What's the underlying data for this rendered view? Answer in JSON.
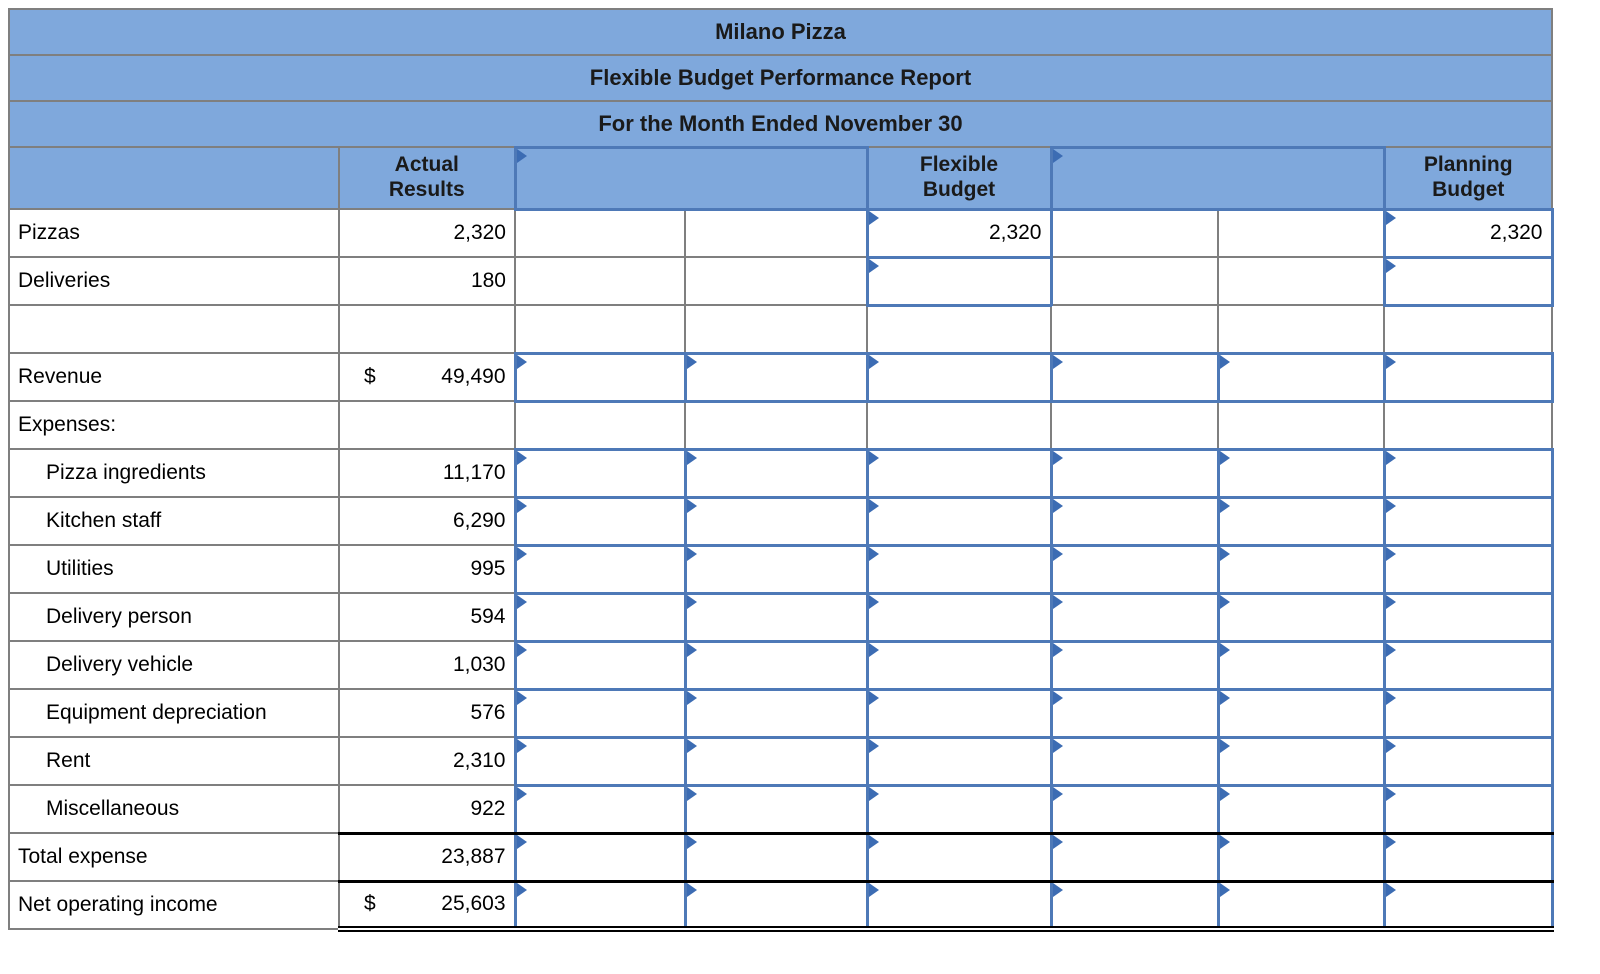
{
  "report": {
    "title": "Milano Pizza",
    "subtitle": "Flexible Budget Performance Report",
    "period": "For the Month Ended November 30"
  },
  "column_headers": {
    "actual": "Actual\nResults",
    "flexible": "Flexible\nBudget",
    "planning": "Planning\nBudget"
  },
  "colors": {
    "header_bg": "#7FA8DC",
    "input_border": "#4E79B7",
    "flag": "#3C6CB3",
    "grid": "#7f7f7f"
  },
  "body_rows": [
    {
      "name": "pizzas",
      "label": "Pizzas",
      "indent": false,
      "rule": "none",
      "actual": {
        "value": "2,320"
      },
      "cells": [
        null,
        null,
        {
          "value": "2,320"
        },
        null,
        null,
        {
          "value": "2,320"
        }
      ]
    },
    {
      "name": "deliveries",
      "label": "Deliveries",
      "indent": false,
      "rule": "none",
      "actual": {
        "value": "180"
      },
      "cells": [
        null,
        null,
        {
          "value": ""
        },
        null,
        null,
        {
          "value": ""
        }
      ]
    },
    {
      "name": "spacer",
      "label": "",
      "indent": false,
      "rule": "none",
      "actual": null,
      "cells": [
        null,
        null,
        null,
        null,
        null,
        null
      ]
    },
    {
      "name": "revenue",
      "label": "Revenue",
      "indent": false,
      "rule": "none",
      "actual": {
        "prefix": "$",
        "value": "49,490"
      },
      "cells": [
        {
          "value": ""
        },
        {
          "value": ""
        },
        {
          "value": ""
        },
        {
          "value": ""
        },
        {
          "value": ""
        },
        {
          "value": ""
        }
      ]
    },
    {
      "name": "expenses-heading",
      "label": "Expenses:",
      "indent": false,
      "rule": "none",
      "actual": null,
      "cells": [
        null,
        null,
        null,
        null,
        null,
        null
      ]
    },
    {
      "name": "pizza-ingredients",
      "label": "Pizza ingredients",
      "indent": true,
      "rule": "none",
      "actual": {
        "value": "11,170"
      },
      "cells": [
        {
          "value": ""
        },
        {
          "value": ""
        },
        {
          "value": ""
        },
        {
          "value": ""
        },
        {
          "value": ""
        },
        {
          "value": ""
        }
      ]
    },
    {
      "name": "kitchen-staff",
      "label": "Kitchen staff",
      "indent": true,
      "rule": "none",
      "actual": {
        "value": "6,290"
      },
      "cells": [
        {
          "value": ""
        },
        {
          "value": ""
        },
        {
          "value": ""
        },
        {
          "value": ""
        },
        {
          "value": ""
        },
        {
          "value": ""
        }
      ]
    },
    {
      "name": "utilities",
      "label": "Utilities",
      "indent": true,
      "rule": "none",
      "actual": {
        "value": "995"
      },
      "cells": [
        {
          "value": ""
        },
        {
          "value": ""
        },
        {
          "value": ""
        },
        {
          "value": ""
        },
        {
          "value": ""
        },
        {
          "value": ""
        }
      ]
    },
    {
      "name": "delivery-person",
      "label": "Delivery person",
      "indent": true,
      "rule": "none",
      "actual": {
        "value": "594"
      },
      "cells": [
        {
          "value": ""
        },
        {
          "value": ""
        },
        {
          "value": ""
        },
        {
          "value": ""
        },
        {
          "value": ""
        },
        {
          "value": ""
        }
      ]
    },
    {
      "name": "delivery-vehicle",
      "label": "Delivery vehicle",
      "indent": true,
      "rule": "none",
      "actual": {
        "value": "1,030"
      },
      "cells": [
        {
          "value": ""
        },
        {
          "value": ""
        },
        {
          "value": ""
        },
        {
          "value": ""
        },
        {
          "value": ""
        },
        {
          "value": ""
        }
      ]
    },
    {
      "name": "equipment-depreciation",
      "label": "Equipment depreciation",
      "indent": true,
      "rule": "none",
      "actual": {
        "value": "576"
      },
      "cells": [
        {
          "value": ""
        },
        {
          "value": ""
        },
        {
          "value": ""
        },
        {
          "value": ""
        },
        {
          "value": ""
        },
        {
          "value": ""
        }
      ]
    },
    {
      "name": "rent",
      "label": "Rent",
      "indent": true,
      "rule": "none",
      "actual": {
        "value": "2,310"
      },
      "cells": [
        {
          "value": ""
        },
        {
          "value": ""
        },
        {
          "value": ""
        },
        {
          "value": ""
        },
        {
          "value": ""
        },
        {
          "value": ""
        }
      ]
    },
    {
      "name": "miscellaneous",
      "label": "Miscellaneous",
      "indent": true,
      "rule": "single",
      "actual": {
        "value": "922"
      },
      "cells": [
        {
          "value": ""
        },
        {
          "value": ""
        },
        {
          "value": ""
        },
        {
          "value": ""
        },
        {
          "value": ""
        },
        {
          "value": ""
        }
      ]
    },
    {
      "name": "total-expense",
      "label": "Total expense",
      "indent": false,
      "rule": "single",
      "actual": {
        "value": "23,887"
      },
      "cells": [
        {
          "value": ""
        },
        {
          "value": ""
        },
        {
          "value": ""
        },
        {
          "value": ""
        },
        {
          "value": ""
        },
        {
          "value": ""
        }
      ]
    },
    {
      "name": "net-operating-income",
      "label": "Net operating income",
      "indent": false,
      "rule": "double",
      "actual": {
        "prefix": "$",
        "value": "25,603"
      },
      "cells": [
        {
          "value": ""
        },
        {
          "value": ""
        },
        {
          "value": ""
        },
        {
          "value": ""
        },
        {
          "value": ""
        },
        {
          "value": ""
        }
      ]
    }
  ]
}
